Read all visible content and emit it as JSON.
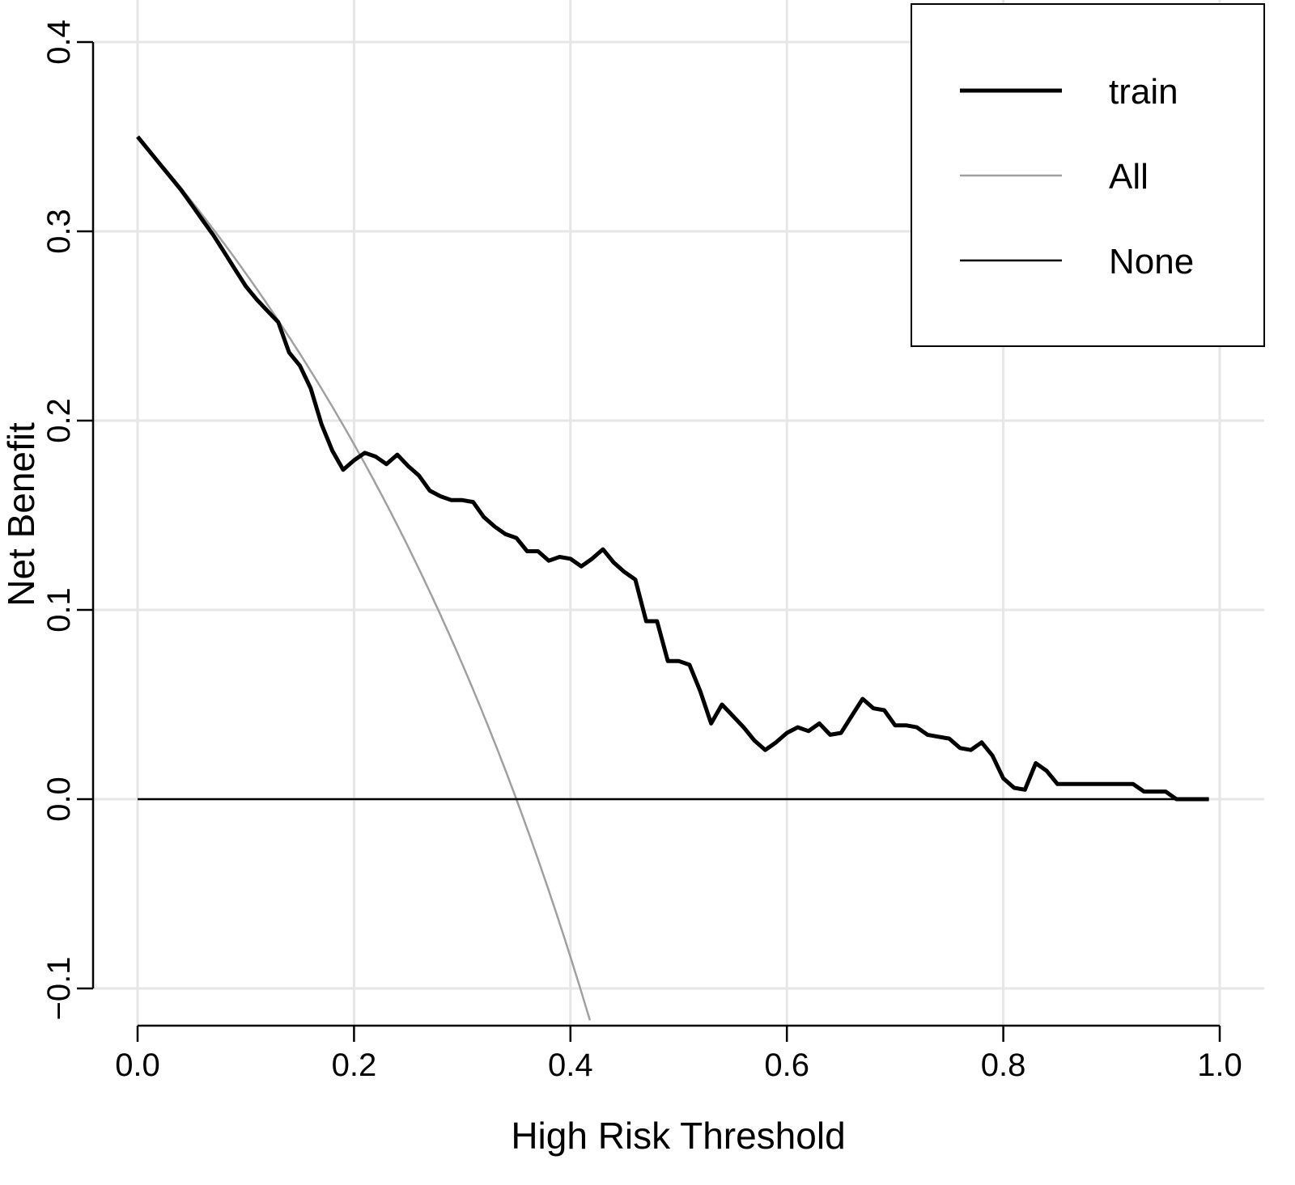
{
  "chart_data": {
    "type": "line",
    "title": "",
    "xlabel": "High Risk Threshold",
    "ylabel": "Net Benefit",
    "xlim": [
      -0.04,
      1.04
    ],
    "ylim": [
      -0.12,
      0.42
    ],
    "grid": true,
    "x_ticks": [
      0.0,
      0.2,
      0.4,
      0.6,
      0.8,
      1.0
    ],
    "x_tick_labels": [
      "0.0",
      "0.2",
      "0.4",
      "0.6",
      "0.8",
      "1.0"
    ],
    "y_ticks": [
      -0.1,
      0.0,
      0.1,
      0.2,
      0.3,
      0.4
    ],
    "y_tick_labels": [
      "−0.1",
      "0.0",
      "0.1",
      "0.2",
      "0.3",
      "0.4"
    ],
    "legend_position": "top-right",
    "prevalence": 0.35,
    "series": [
      {
        "name": "train",
        "color": "#000000",
        "style": "thick",
        "x": [
          0,
          0.01,
          0.02,
          0.03,
          0.04,
          0.05,
          0.06,
          0.07,
          0.08,
          0.09,
          0.1,
          0.11,
          0.12,
          0.13,
          0.14,
          0.15,
          0.16,
          0.17,
          0.18,
          0.19,
          0.2,
          0.21,
          0.22,
          0.23,
          0.24,
          0.25,
          0.26,
          0.27,
          0.28,
          0.29,
          0.3,
          0.31,
          0.32,
          0.33,
          0.34,
          0.35,
          0.36,
          0.37,
          0.38,
          0.39,
          0.4,
          0.41,
          0.42,
          0.43,
          0.44,
          0.45,
          0.46,
          0.47,
          0.48,
          0.49,
          0.5,
          0.51,
          0.52,
          0.53,
          0.54,
          0.55,
          0.56,
          0.57,
          0.58,
          0.59,
          0.6,
          0.61,
          0.62,
          0.63,
          0.64,
          0.65,
          0.66,
          0.67,
          0.68,
          0.69,
          0.7,
          0.71,
          0.72,
          0.73,
          0.74,
          0.75,
          0.76,
          0.77,
          0.78,
          0.79,
          0.8,
          0.81,
          0.82,
          0.83,
          0.84,
          0.85,
          0.86,
          0.87,
          0.88,
          0.89,
          0.9,
          0.91,
          0.92,
          0.93,
          0.94,
          0.95,
          0.96,
          0.97,
          0.98,
          0.99
        ],
        "y": [
          0.35,
          0.343,
          0.336,
          0.329,
          0.322,
          0.314,
          0.306,
          0.298,
          0.289,
          0.28,
          0.271,
          0.264,
          0.258,
          0.252,
          0.236,
          0.229,
          0.217,
          0.198,
          0.184,
          0.174,
          0.179,
          0.183,
          0.181,
          0.177,
          0.182,
          0.176,
          0.171,
          0.163,
          0.16,
          0.158,
          0.158,
          0.157,
          0.149,
          0.144,
          0.14,
          0.138,
          0.131,
          0.131,
          0.126,
          0.128,
          0.127,
          0.123,
          0.127,
          0.132,
          0.125,
          0.12,
          0.116,
          0.094,
          0.094,
          0.073,
          0.073,
          0.071,
          0.057,
          0.04,
          0.05,
          0.044,
          0.038,
          0.031,
          0.026,
          0.03,
          0.035,
          0.038,
          0.036,
          0.04,
          0.034,
          0.035,
          0.044,
          0.053,
          0.048,
          0.047,
          0.039,
          0.039,
          0.038,
          0.034,
          0.033,
          0.032,
          0.027,
          0.026,
          0.03,
          0.023,
          0.011,
          0.006,
          0.005,
          0.019,
          0.015,
          0.008,
          0.008,
          0.008,
          0.008,
          0.008,
          0.008,
          0.008,
          0.008,
          0.004,
          0.004,
          0.004,
          0.0,
          0.0,
          0.0,
          0.0
        ]
      },
      {
        "name": "All",
        "color": "#a0a0a0",
        "style": "thin",
        "formula": "prevalence - (1 - prevalence) * t / (1 - t)"
      },
      {
        "name": "None",
        "color": "#000000",
        "style": "thin",
        "x": [
          0,
          0.99
        ],
        "y": [
          0,
          0
        ]
      }
    ]
  }
}
